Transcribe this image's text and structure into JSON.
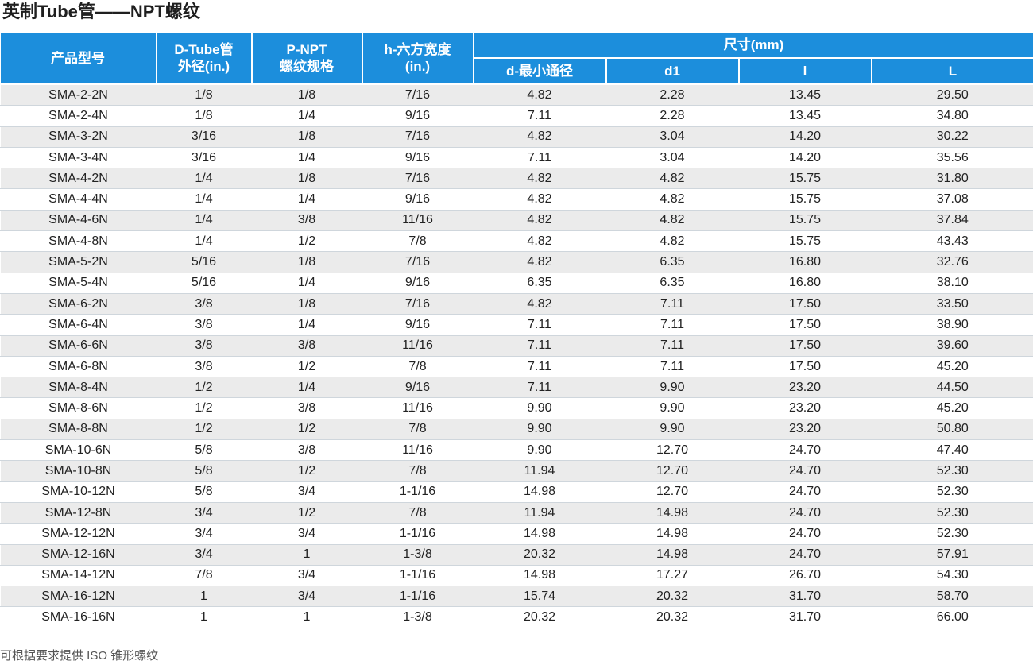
{
  "title": "英制Tube管——NPT螺纹",
  "headers": {
    "model": "产品型号",
    "d_tube_1": "D-Tube管",
    "d_tube_2": "外径(in.)",
    "p_npt_1": "P-NPT",
    "p_npt_2": "螺纹规格",
    "h_hex_1": "h-六方宽度",
    "h_hex_2": "(in.)",
    "dimensions": "尺寸(mm)",
    "d_min": "d-最小通径",
    "d1": "d1",
    "l_small": "l",
    "l_big": "L"
  },
  "rows": [
    [
      "SMA-2-2N",
      "1/8",
      "1/8",
      "7/16",
      "4.82",
      "2.28",
      "13.45",
      "29.50"
    ],
    [
      "SMA-2-4N",
      "1/8",
      "1/4",
      "9/16",
      "7.11",
      "2.28",
      "13.45",
      "34.80"
    ],
    [
      "SMA-3-2N",
      "3/16",
      "1/8",
      "7/16",
      "4.82",
      "3.04",
      "14.20",
      "30.22"
    ],
    [
      "SMA-3-4N",
      "3/16",
      "1/4",
      "9/16",
      "7.11",
      "3.04",
      "14.20",
      "35.56"
    ],
    [
      "SMA-4-2N",
      "1/4",
      "1/8",
      "7/16",
      "4.82",
      "4.82",
      "15.75",
      "31.80"
    ],
    [
      "SMA-4-4N",
      "1/4",
      "1/4",
      "9/16",
      "4.82",
      "4.82",
      "15.75",
      "37.08"
    ],
    [
      "SMA-4-6N",
      "1/4",
      "3/8",
      "11/16",
      "4.82",
      "4.82",
      "15.75",
      "37.84"
    ],
    [
      "SMA-4-8N",
      "1/4",
      "1/2",
      "7/8",
      "4.82",
      "4.82",
      "15.75",
      "43.43"
    ],
    [
      "SMA-5-2N",
      "5/16",
      "1/8",
      "7/16",
      "4.82",
      "6.35",
      "16.80",
      "32.76"
    ],
    [
      "SMA-5-4N",
      "5/16",
      "1/4",
      "9/16",
      "6.35",
      "6.35",
      "16.80",
      "38.10"
    ],
    [
      "SMA-6-2N",
      "3/8",
      "1/8",
      "7/16",
      "4.82",
      "7.11",
      "17.50",
      "33.50"
    ],
    [
      "SMA-6-4N",
      "3/8",
      "1/4",
      "9/16",
      "7.11",
      "7.11",
      "17.50",
      "38.90"
    ],
    [
      "SMA-6-6N",
      "3/8",
      "3/8",
      "11/16",
      "7.11",
      "7.11",
      "17.50",
      "39.60"
    ],
    [
      "SMA-6-8N",
      "3/8",
      "1/2",
      "7/8",
      "7.11",
      "7.11",
      "17.50",
      "45.20"
    ],
    [
      "SMA-8-4N",
      "1/2",
      "1/4",
      "9/16",
      "7.11",
      "9.90",
      "23.20",
      "44.50"
    ],
    [
      "SMA-8-6N",
      "1/2",
      "3/8",
      "11/16",
      "9.90",
      "9.90",
      "23.20",
      "45.20"
    ],
    [
      "SMA-8-8N",
      "1/2",
      "1/2",
      "7/8",
      "9.90",
      "9.90",
      "23.20",
      "50.80"
    ],
    [
      "SMA-10-6N",
      "5/8",
      "3/8",
      "11/16",
      "9.90",
      "12.70",
      "24.70",
      "47.40"
    ],
    [
      "SMA-10-8N",
      "5/8",
      "1/2",
      "7/8",
      "11.94",
      "12.70",
      "24.70",
      "52.30"
    ],
    [
      "SMA-10-12N",
      "5/8",
      "3/4",
      "1-1/16",
      "14.98",
      "12.70",
      "24.70",
      "52.30"
    ],
    [
      "SMA-12-8N",
      "3/4",
      "1/2",
      "7/8",
      "11.94",
      "14.98",
      "24.70",
      "52.30"
    ],
    [
      "SMA-12-12N",
      "3/4",
      "3/4",
      "1-1/16",
      "14.98",
      "14.98",
      "24.70",
      "52.30"
    ],
    [
      "SMA-12-16N",
      "3/4",
      "1",
      "1-3/8",
      "20.32",
      "14.98",
      "24.70",
      "57.91"
    ],
    [
      "SMA-14-12N",
      "7/8",
      "3/4",
      "1-1/16",
      "14.98",
      "17.27",
      "26.70",
      "54.30"
    ],
    [
      "SMA-16-12N",
      "1",
      "3/4",
      "1-1/16",
      "15.74",
      "20.32",
      "31.70",
      "58.70"
    ],
    [
      "SMA-16-16N",
      "1",
      "1",
      "1-3/8",
      "20.32",
      "20.32",
      "31.70",
      "66.00"
    ]
  ],
  "note": "可根据要求提供 ISO 锥形螺纹",
  "colors": {
    "header_bg": "#1c8edc",
    "header_text": "#ffffff",
    "stripe_bg": "#ebebeb"
  }
}
